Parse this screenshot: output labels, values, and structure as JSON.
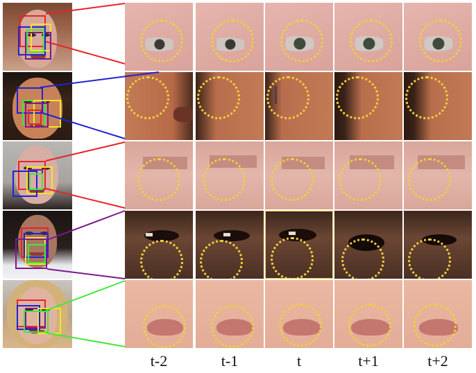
{
  "time_labels": [
    "t-2",
    "t-1",
    "t",
    "t+1",
    "t+2"
  ],
  "colors": {
    "red": "#e8232a",
    "blue": "#1e22d6",
    "yellow": "#f3e52a",
    "green": "#3fe83a",
    "purple": "#7a1a8e",
    "ring": "#f2cf3c"
  },
  "highlighted_frame": {
    "row": 4,
    "col": 3
  }
}
